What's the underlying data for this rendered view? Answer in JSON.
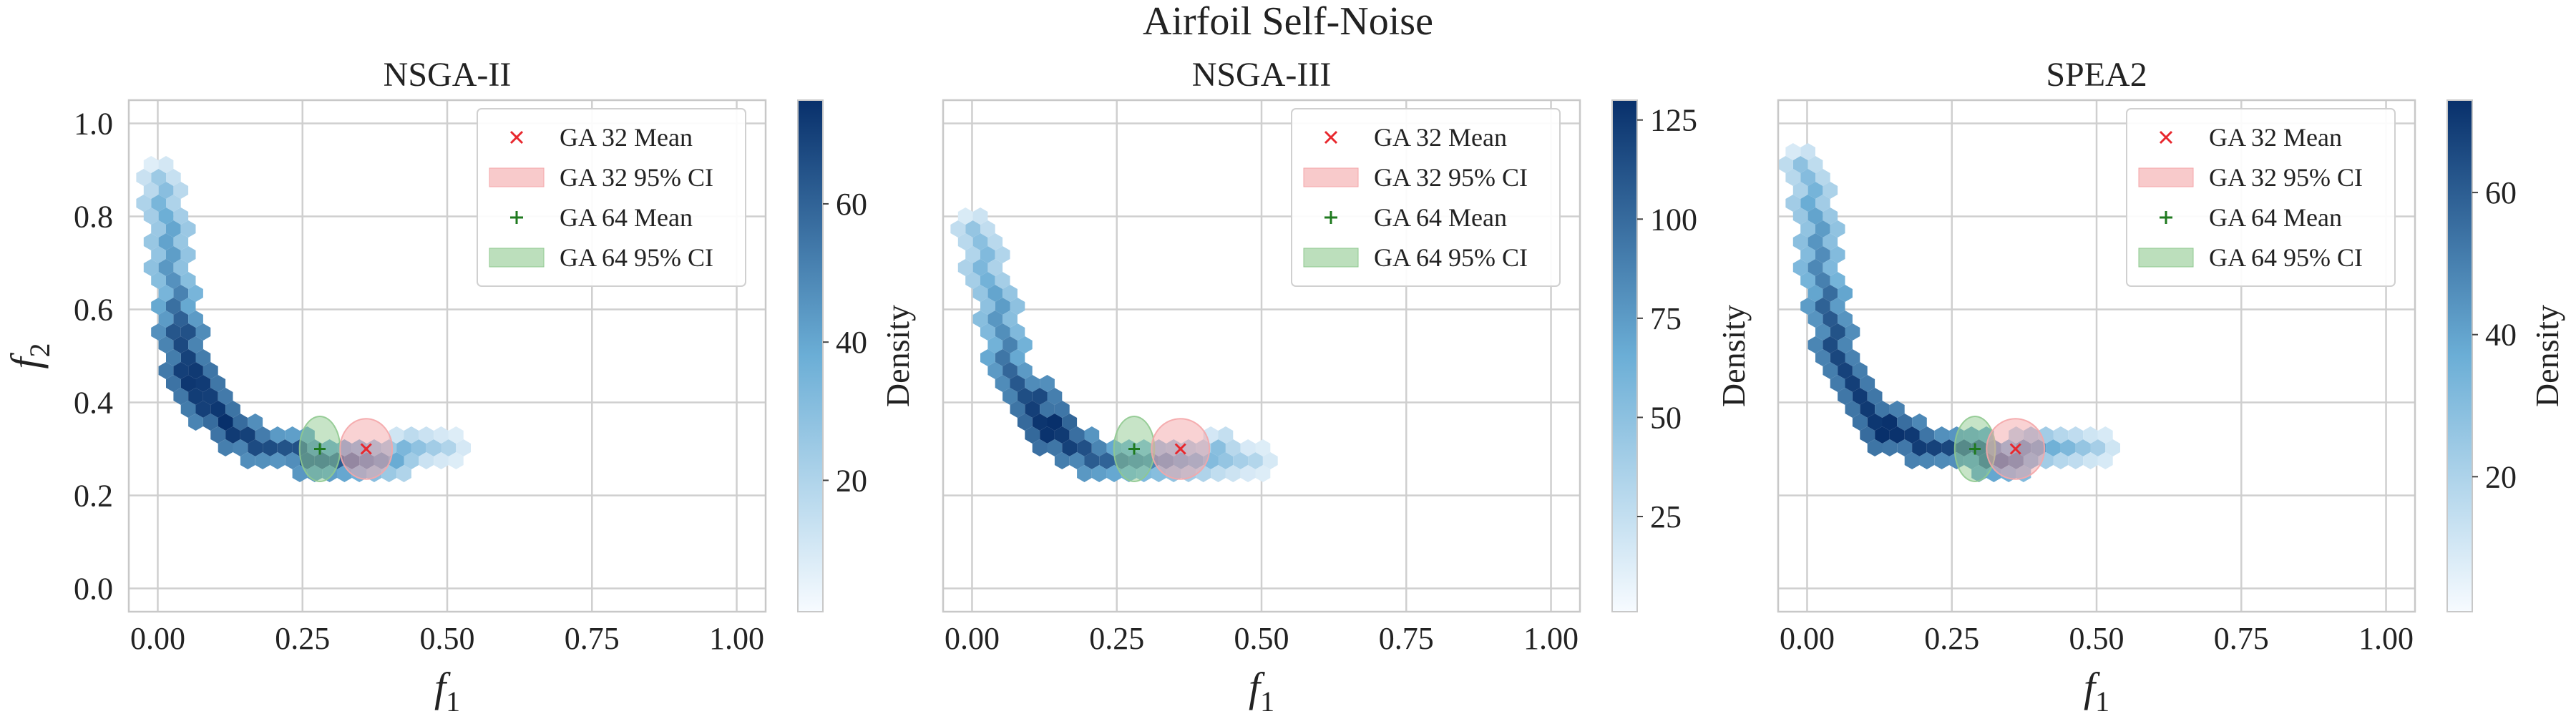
{
  "figure": {
    "title": "Airfoil Self-Noise"
  },
  "theme": {
    "grid_color": "#cfcfcf",
    "spine_color": "#c8c8c8",
    "text_color": "#222222",
    "ga32_color": "#e8282e",
    "ga32_fill": "#f4a6a8",
    "ga64_color": "#1f7a1f",
    "ga64_fill": "#8fc98f",
    "cmap_low": "#f7fbff",
    "cmap_mid": "#6baed6",
    "cmap_high": "#08306b"
  },
  "chart_data": [
    {
      "type": "hexbin",
      "title": "NSGA-II",
      "xlabel": "f1",
      "ylabel": "f2",
      "xlim": [
        -0.05,
        1.05
      ],
      "ylim": [
        -0.05,
        1.05
      ],
      "xticks": [
        "0.00",
        "0.25",
        "0.50",
        "0.75",
        "1.00"
      ],
      "yticks": [
        "0.0",
        "0.2",
        "0.4",
        "0.6",
        "0.8",
        "1.0"
      ],
      "grid": true,
      "colorbar": {
        "label": "Density",
        "min": 1,
        "max": 75,
        "ticks": [
          20,
          40,
          60
        ]
      },
      "legend": {
        "position": "top-right",
        "entries": [
          "GA 32 Mean",
          "GA 32 95% CI",
          "GA 64 Mean",
          "GA 64 95% CI"
        ]
      },
      "curve": [
        {
          "x": 0.0,
          "y": 0.88,
          "d": 3
        },
        {
          "x": 0.01,
          "y": 0.82,
          "d": 6
        },
        {
          "x": 0.02,
          "y": 0.76,
          "d": 9
        },
        {
          "x": 0.02,
          "y": 0.7,
          "d": 11
        },
        {
          "x": 0.03,
          "y": 0.64,
          "d": 14
        },
        {
          "x": 0.03,
          "y": 0.58,
          "d": 28
        },
        {
          "x": 0.04,
          "y": 0.54,
          "d": 42
        },
        {
          "x": 0.05,
          "y": 0.49,
          "d": 55
        },
        {
          "x": 0.06,
          "y": 0.45,
          "d": 66
        },
        {
          "x": 0.07,
          "y": 0.42,
          "d": 60
        },
        {
          "x": 0.09,
          "y": 0.39,
          "d": 55
        },
        {
          "x": 0.11,
          "y": 0.36,
          "d": 75
        },
        {
          "x": 0.13,
          "y": 0.34,
          "d": 62
        },
        {
          "x": 0.16,
          "y": 0.32,
          "d": 50
        },
        {
          "x": 0.19,
          "y": 0.305,
          "d": 44
        },
        {
          "x": 0.22,
          "y": 0.295,
          "d": 40
        },
        {
          "x": 0.25,
          "y": 0.29,
          "d": 42
        },
        {
          "x": 0.28,
          "y": 0.285,
          "d": 38
        },
        {
          "x": 0.31,
          "y": 0.28,
          "d": 34
        },
        {
          "x": 0.34,
          "y": 0.28,
          "d": 22
        },
        {
          "x": 0.37,
          "y": 0.28,
          "d": 14
        },
        {
          "x": 0.4,
          "y": 0.285,
          "d": 8
        },
        {
          "x": 0.43,
          "y": 0.29,
          "d": 5
        },
        {
          "x": 0.46,
          "y": 0.3,
          "d": 3
        },
        {
          "x": 0.49,
          "y": 0.31,
          "d": 2
        }
      ],
      "ga32": {
        "mean": [
          0.36,
          0.3
        ],
        "ci_width": 0.09,
        "ci_height": 0.13
      },
      "ga64": {
        "mean": [
          0.28,
          0.3
        ],
        "ci_width": 0.07,
        "ci_height": 0.14
      }
    },
    {
      "type": "hexbin",
      "title": "NSGA-III",
      "xlabel": "f1",
      "ylabel": "",
      "xlim": [
        -0.05,
        1.05
      ],
      "ylim": [
        -0.05,
        1.05
      ],
      "xticks": [
        "0.00",
        "0.25",
        "0.50",
        "0.75",
        "1.00"
      ],
      "yticks": [],
      "grid": true,
      "colorbar": {
        "label": "Density",
        "min": 1,
        "max": 130,
        "ticks": [
          25,
          50,
          75,
          100,
          125
        ]
      },
      "legend": {
        "position": "top-right",
        "entries": [
          "GA 32 Mean",
          "GA 32 95% CI",
          "GA 64 Mean",
          "GA 64 95% CI"
        ]
      },
      "curve": [
        {
          "x": 0.01,
          "y": 0.78,
          "d": 4
        },
        {
          "x": 0.02,
          "y": 0.72,
          "d": 6
        },
        {
          "x": 0.03,
          "y": 0.66,
          "d": 9
        },
        {
          "x": 0.04,
          "y": 0.61,
          "d": 14
        },
        {
          "x": 0.05,
          "y": 0.56,
          "d": 18
        },
        {
          "x": 0.06,
          "y": 0.51,
          "d": 26
        },
        {
          "x": 0.07,
          "y": 0.47,
          "d": 40
        },
        {
          "x": 0.09,
          "y": 0.43,
          "d": 60
        },
        {
          "x": 0.11,
          "y": 0.39,
          "d": 85
        },
        {
          "x": 0.13,
          "y": 0.35,
          "d": 130
        },
        {
          "x": 0.15,
          "y": 0.32,
          "d": 100
        },
        {
          "x": 0.18,
          "y": 0.3,
          "d": 75
        },
        {
          "x": 0.21,
          "y": 0.285,
          "d": 55
        },
        {
          "x": 0.24,
          "y": 0.28,
          "d": 40
        },
        {
          "x": 0.27,
          "y": 0.28,
          "d": 30
        },
        {
          "x": 0.3,
          "y": 0.28,
          "d": 24
        },
        {
          "x": 0.33,
          "y": 0.28,
          "d": 18
        },
        {
          "x": 0.36,
          "y": 0.28,
          "d": 12
        },
        {
          "x": 0.39,
          "y": 0.285,
          "d": 8
        },
        {
          "x": 0.42,
          "y": 0.29,
          "d": 5
        },
        {
          "x": 0.46,
          "y": 0.28,
          "d": 3
        },
        {
          "x": 0.49,
          "y": 0.27,
          "d": 2
        }
      ],
      "ga32": {
        "mean": [
          0.36,
          0.3
        ],
        "ci_width": 0.1,
        "ci_height": 0.13
      },
      "ga64": {
        "mean": [
          0.28,
          0.3
        ],
        "ci_width": 0.07,
        "ci_height": 0.14
      }
    },
    {
      "type": "hexbin",
      "title": "SPEA2",
      "xlabel": "f1",
      "ylabel": "",
      "xlim": [
        -0.05,
        1.05
      ],
      "ylim": [
        -0.05,
        1.05
      ],
      "xticks": [
        "0.00",
        "0.25",
        "0.50",
        "0.75",
        "1.00"
      ],
      "yticks": [],
      "grid": true,
      "colorbar": {
        "label": "Density",
        "min": 1,
        "max": 73,
        "ticks": [
          20,
          40,
          60
        ]
      },
      "legend": {
        "position": "top-right",
        "entries": [
          "GA 32 Mean",
          "GA 32 95% CI",
          "GA 64 Mean",
          "GA 64 95% CI"
        ]
      },
      "curve": [
        {
          "x": 0.0,
          "y": 0.9,
          "d": 4
        },
        {
          "x": 0.01,
          "y": 0.84,
          "d": 7
        },
        {
          "x": 0.02,
          "y": 0.78,
          "d": 10
        },
        {
          "x": 0.02,
          "y": 0.72,
          "d": 13
        },
        {
          "x": 0.03,
          "y": 0.66,
          "d": 18
        },
        {
          "x": 0.03,
          "y": 0.61,
          "d": 28
        },
        {
          "x": 0.04,
          "y": 0.56,
          "d": 38
        },
        {
          "x": 0.05,
          "y": 0.51,
          "d": 46
        },
        {
          "x": 0.06,
          "y": 0.47,
          "d": 52
        },
        {
          "x": 0.08,
          "y": 0.43,
          "d": 56
        },
        {
          "x": 0.1,
          "y": 0.4,
          "d": 60
        },
        {
          "x": 0.12,
          "y": 0.37,
          "d": 62
        },
        {
          "x": 0.14,
          "y": 0.34,
          "d": 73
        },
        {
          "x": 0.17,
          "y": 0.32,
          "d": 62
        },
        {
          "x": 0.2,
          "y": 0.31,
          "d": 55
        },
        {
          "x": 0.23,
          "y": 0.3,
          "d": 50
        },
        {
          "x": 0.26,
          "y": 0.295,
          "d": 46
        },
        {
          "x": 0.29,
          "y": 0.29,
          "d": 40
        },
        {
          "x": 0.32,
          "y": 0.285,
          "d": 30
        },
        {
          "x": 0.35,
          "y": 0.285,
          "d": 20
        },
        {
          "x": 0.38,
          "y": 0.29,
          "d": 12
        },
        {
          "x": 0.42,
          "y": 0.29,
          "d": 7
        },
        {
          "x": 0.46,
          "y": 0.29,
          "d": 4
        },
        {
          "x": 0.5,
          "y": 0.29,
          "d": 2
        }
      ],
      "ga32": {
        "mean": [
          0.36,
          0.3
        ],
        "ci_width": 0.1,
        "ci_height": 0.13
      },
      "ga64": {
        "mean": [
          0.29,
          0.3
        ],
        "ci_width": 0.07,
        "ci_height": 0.14
      }
    }
  ]
}
